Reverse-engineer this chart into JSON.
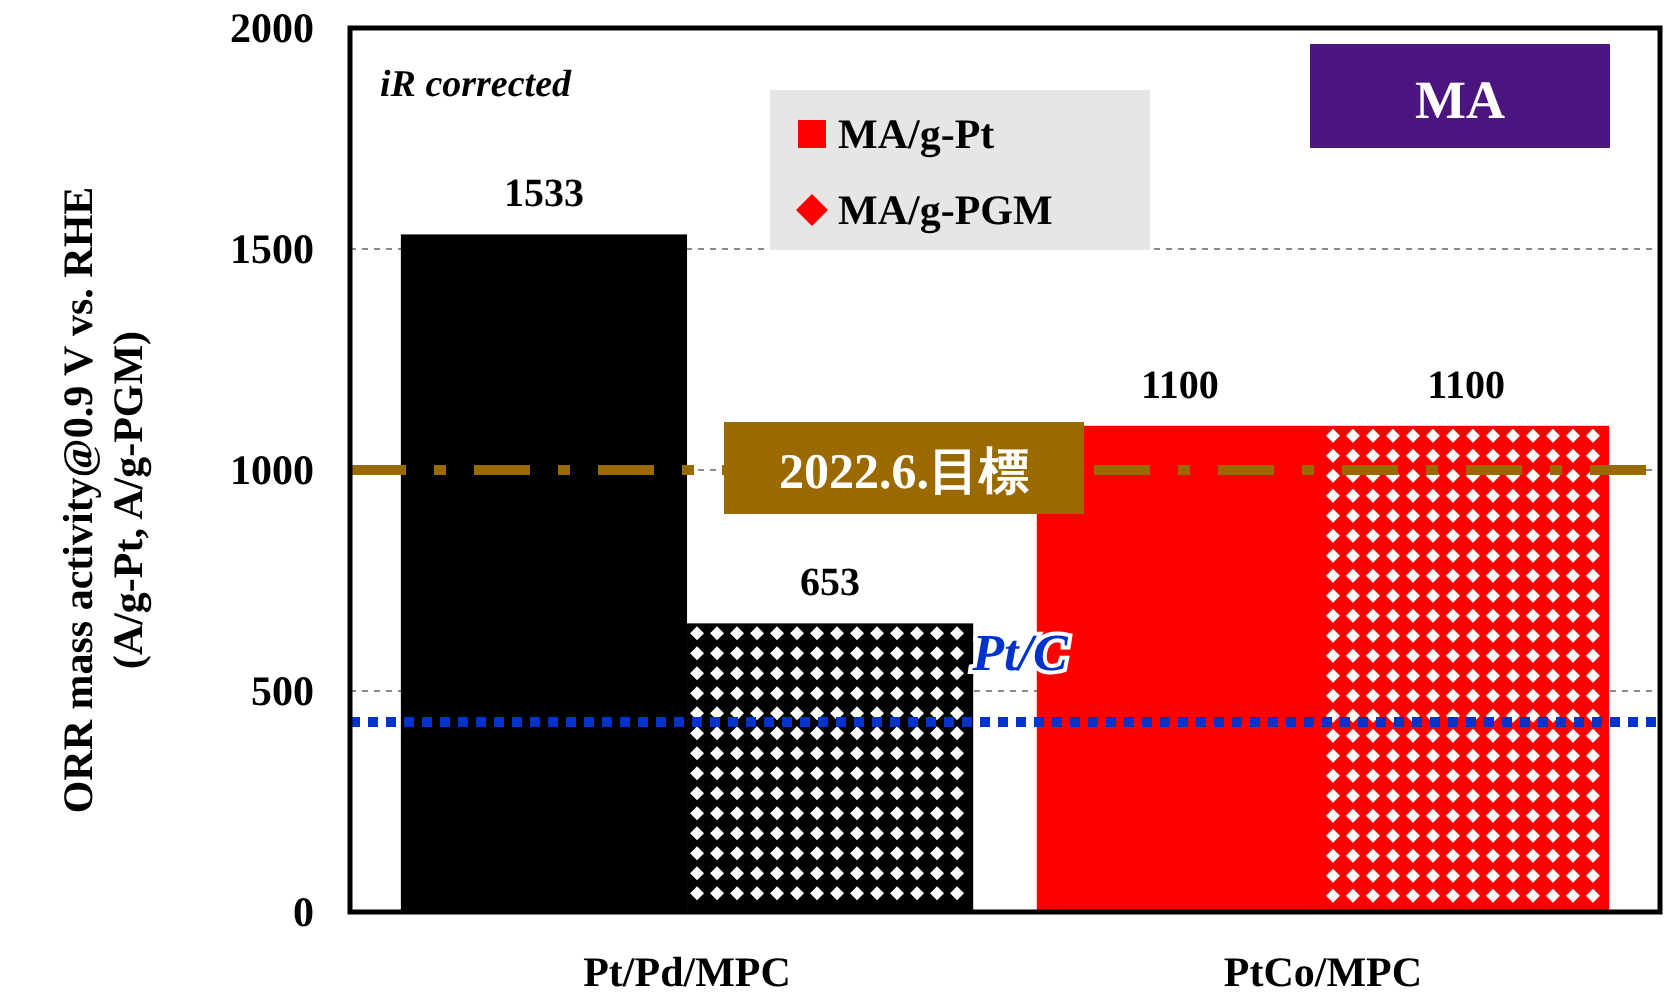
{
  "chart_data": {
    "type": "bar",
    "categories": [
      "Pt/Pd/MPC",
      "PtCo/MPC"
    ],
    "ylabel": "ORR mass activity@0.9 V vs. RHE\n(A/g-Pt, A/g-PGM)",
    "series": [
      {
        "name": "MA/g-Pt",
        "color": "#ff0000",
        "colors": [
          "#000000",
          "#ff0000"
        ],
        "values": [
          1533,
          1100
        ]
      },
      {
        "name": "MA/g-PGM",
        "color": "#ff0000",
        "colors": [
          "#000000",
          "#ff0000"
        ],
        "values": [
          653,
          1100
        ]
      }
    ],
    "ylim": [
      0,
      2000
    ],
    "yticks": [
      0,
      500,
      1000,
      1500,
      2000
    ],
    "grid": "y",
    "legend": "top",
    "data_labels": true,
    "ref_lines": [
      {
        "axis": "y",
        "value": 1000,
        "label": "2022.6.目標",
        "color": "#9a6a00",
        "line_style": "dashdot"
      },
      {
        "axis": "y",
        "value": 430,
        "label": "Pt/C",
        "color": "#0033cc",
        "line_style": "dotted"
      }
    ],
    "annotations": [
      "iR corrected",
      "MA"
    ]
  }
}
